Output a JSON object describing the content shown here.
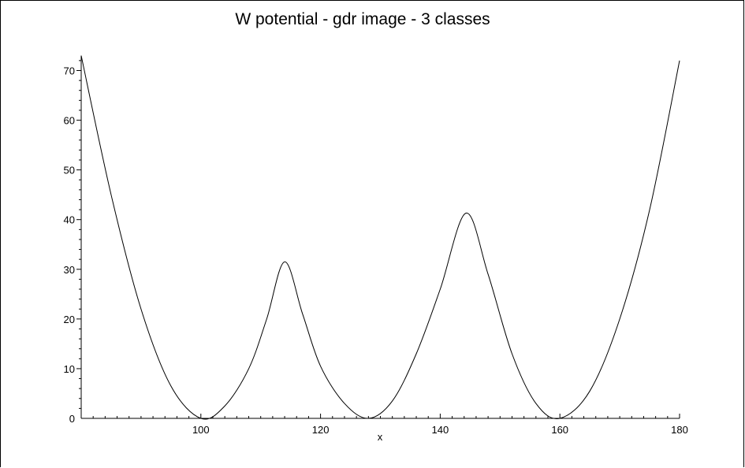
{
  "chart_data": {
    "type": "line",
    "title": "W potential - gdr image - 3 classes",
    "xlabel": "x",
    "ylabel": "",
    "xlim": [
      80,
      180
    ],
    "ylim": [
      0,
      73
    ],
    "xticks": [
      100,
      120,
      140,
      160,
      180
    ],
    "yticks": [
      0,
      10,
      20,
      30,
      40,
      50,
      60,
      70
    ],
    "grid": false,
    "series": [
      {
        "x": [
          80,
          85,
          90,
          95,
          100,
          104,
          108,
          111,
          114,
          117,
          120,
          124,
          128,
          132,
          136,
          140,
          144.3,
          148,
          152,
          156,
          160,
          165,
          170,
          175,
          180
        ],
        "y": [
          73,
          45,
          22,
          6.5,
          0,
          2.5,
          10,
          20,
          31.5,
          21,
          10.5,
          3,
          0,
          3.5,
          13,
          26,
          41.3,
          29,
          13,
          3,
          0,
          5.5,
          20,
          42,
          72
        ]
      }
    ]
  }
}
